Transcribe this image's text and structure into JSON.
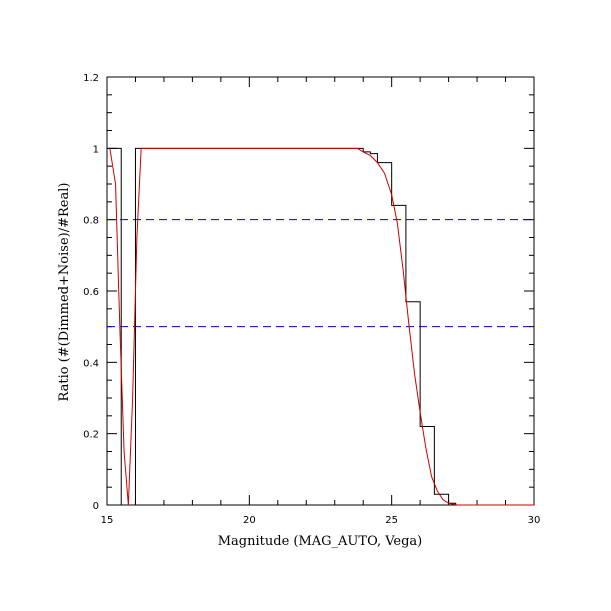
{
  "chart_data": {
    "type": "line",
    "xlabel": "Magnitude (MAG_AUTO, Vega)",
    "ylabel": "Ratio (#(Dimmed+Noise)/#Real)",
    "xlim": [
      15,
      30
    ],
    "ylim": [
      0,
      1.2
    ],
    "xticks": [
      15,
      20,
      25,
      30
    ],
    "xtick_labels": [
      "15",
      "20",
      "25",
      "30"
    ],
    "yticks": [
      0,
      0.2,
      0.4,
      0.6,
      0.8,
      1.0,
      1.2
    ],
    "ytick_labels": [
      "0",
      "0.2",
      "0.4",
      "0.6",
      "0.8",
      "1",
      "1.2"
    ],
    "x_minor_step": 1,
    "y_minor_step": 0.05,
    "grid": false,
    "reference_lines": [
      {
        "axis": "y",
        "value": 0.8,
        "style": "dashed",
        "color": "#0000cc"
      },
      {
        "axis": "y",
        "value": 0.5,
        "style": "dashed",
        "color": "#0000cc"
      }
    ],
    "series": [
      {
        "style": "histogram-step",
        "color": "#000000",
        "x": [
          15.0,
          15.25,
          15.5,
          15.75,
          16.0,
          16.25,
          16.5,
          17.0,
          18.0,
          19.0,
          20.0,
          21.0,
          22.0,
          23.0,
          23.75,
          24.0,
          24.25,
          24.5,
          24.75,
          25.0,
          25.25,
          25.5,
          25.75,
          26.0,
          26.25,
          26.5,
          26.75,
          27.0,
          27.25,
          27.5,
          28.0,
          29.0,
          30.0
        ],
        "y": [
          1.0,
          1.0,
          0.0,
          0.0,
          1.0,
          1.0,
          1.0,
          1.0,
          1.0,
          1.0,
          1.0,
          1.0,
          1.0,
          1.0,
          1.0,
          0.99,
          0.985,
          0.96,
          0.96,
          0.84,
          0.84,
          0.57,
          0.57,
          0.22,
          0.22,
          0.03,
          0.03,
          0.005,
          0.0,
          0.0,
          0.0,
          0.0,
          0.0
        ]
      },
      {
        "style": "smooth-line",
        "color": "#cc0000",
        "x": [
          15.1,
          15.3,
          15.45,
          15.6,
          15.75,
          15.9,
          16.05,
          16.2,
          16.5,
          17.0,
          18.0,
          19.0,
          20.0,
          21.0,
          22.0,
          23.0,
          23.8,
          24.0,
          24.25,
          24.5,
          24.75,
          25.0,
          25.2,
          25.4,
          25.6,
          25.8,
          26.0,
          26.2,
          26.4,
          26.6,
          26.8,
          27.0,
          27.3,
          27.6,
          28.0,
          29.0,
          30.0
        ],
        "y": [
          1.0,
          0.9,
          0.5,
          0.15,
          0.0,
          0.3,
          0.75,
          1.0,
          1.0,
          1.0,
          1.0,
          1.0,
          1.0,
          1.0,
          1.0,
          1.0,
          1.0,
          0.99,
          0.98,
          0.96,
          0.93,
          0.87,
          0.79,
          0.66,
          0.51,
          0.37,
          0.26,
          0.16,
          0.08,
          0.04,
          0.015,
          0.005,
          0.0,
          0.0,
          0.0,
          0.0,
          0.0
        ]
      }
    ]
  }
}
